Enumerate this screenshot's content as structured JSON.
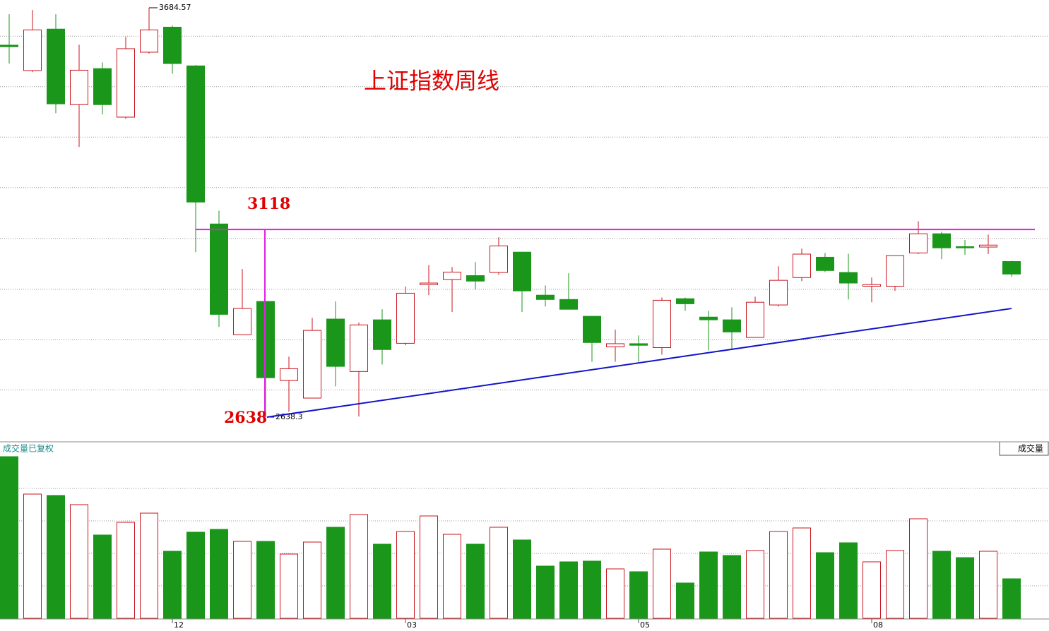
{
  "chart_data": {
    "type": "candlestick",
    "title": "上证指数周线",
    "categories": [
      null,
      null,
      null,
      null,
      null,
      null,
      null,
      "12",
      null,
      null,
      null,
      null,
      null,
      null,
      null,
      null,
      null,
      "03",
      null,
      null,
      null,
      null,
      null,
      null,
      null,
      null,
      null,
      "05",
      null,
      null,
      null,
      null,
      null,
      null,
      null,
      null,
      null,
      "08",
      null,
      null,
      null,
      null,
      null,
      null
    ],
    "open": [
      3589,
      3524,
      3630,
      3437,
      3529,
      3405,
      3571,
      3635,
      3536,
      3132,
      2849,
      2934,
      2732,
      2687,
      2889,
      2755,
      2887,
      2827,
      2977,
      2990,
      3000,
      3008,
      3060,
      2950,
      2939,
      2896,
      2818,
      2826,
      2816,
      2941,
      2894,
      2887,
      2842,
      2925,
      2995,
      3047,
      3008,
      2973,
      2973,
      3058,
      3107,
      3074,
      3073,
      3036
    ],
    "high": [
      3668,
      3679,
      3668,
      3590,
      3545,
      3610,
      3684.57,
      3639,
      3538,
      3166,
      3017,
      2934,
      2793,
      2892,
      2934,
      2880,
      2914,
      2972,
      3027,
      3022,
      3035,
      3098,
      3060,
      2975,
      3006,
      2896,
      2862,
      2847,
      2944,
      2944,
      2910,
      2919,
      2946,
      3024,
      3069,
      3058,
      3056,
      2995,
      3051,
      3139,
      3112,
      3091,
      3105,
      3038
    ],
    "low": [
      3542,
      3520,
      3415,
      3329,
      3412,
      3401,
      3567,
      3516,
      3060,
      2869,
      2849,
      2638.3,
      2652,
      2687,
      2717,
      2640,
      2773,
      2822,
      2950,
      2907,
      2964,
      3002,
      2907,
      2921,
      2914,
      2780,
      2780,
      2780,
      2798,
      2910,
      2809,
      2813,
      2842,
      2921,
      2986,
      3009,
      2939,
      2932,
      2961,
      3055,
      3042,
      3053,
      3055,
      2997
    ],
    "close": [
      3585,
      3628,
      3439,
      3525,
      3437,
      3580,
      3628,
      3542,
      3188,
      2901,
      2916,
      2739,
      2762,
      2860,
      2768,
      2874,
      2811,
      2955,
      2981,
      3009,
      2986,
      3076,
      2961,
      2939,
      2914,
      2829,
      2826,
      2822,
      2937,
      2928,
      2887,
      2856,
      2932,
      2988,
      3055,
      3013,
      2981,
      2977,
      3051,
      3107,
      3071,
      3071,
      3078,
      3004
    ],
    "up_color": "#c8141e",
    "down_color": "#1a961a",
    "ylim": [
      2586,
      3704.4
    ],
    "yticks": [
      2708,
      2836,
      2965,
      3095,
      3225,
      3354,
      3483,
      3612
    ],
    "grid": true,
    "high_label": 3684.57,
    "low_label": 2638.3,
    "resistance": {
      "value": 3118,
      "color": "#e020e0"
    },
    "support_low": 2638,
    "trendline": {
      "from": [
        11,
        2638.3
      ],
      "to": [
        43,
        2916
      ],
      "color": "#1414c8"
    },
    "volume": {
      "label": "成交量已复权",
      "legend": "成交量",
      "values": [
        229,
        176,
        174,
        161,
        118,
        136,
        149,
        95,
        122,
        126,
        109,
        109,
        91,
        108,
        129,
        147,
        105,
        123,
        145,
        119,
        105,
        129,
        111,
        74,
        80,
        81,
        70,
        66,
        98,
        50,
        94,
        89,
        96,
        123,
        128,
        93,
        107,
        80,
        96,
        141,
        95,
        86,
        95,
        56
      ],
      "ylim": [
        0,
        230
      ],
      "yticks": [
        46,
        92,
        138,
        184
      ]
    }
  }
}
